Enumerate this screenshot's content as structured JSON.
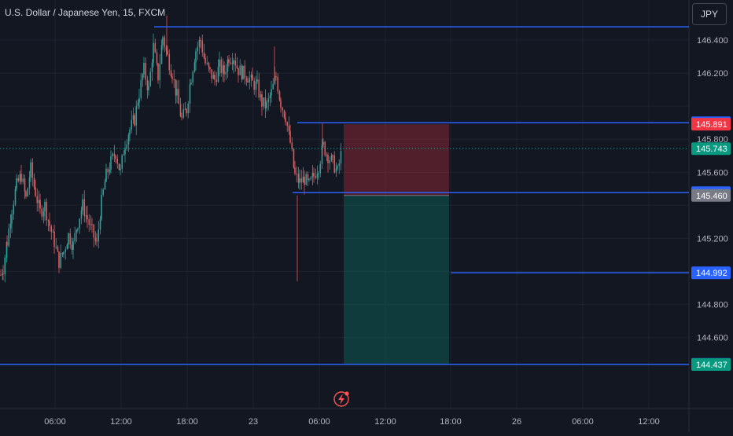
{
  "header": {
    "symbol_title": "U.S. Dollar / Japanese Yen, 15, FXCM",
    "currency_button": "JPY"
  },
  "colors": {
    "background": "#131722",
    "grid": "#1e222d",
    "up_candle": "#26a69a",
    "down_candle": "#ef5350",
    "horizontal_line": "#2962ff",
    "stop_zone": "rgba(242,54,69,0.28)",
    "target_zone": "rgba(8,153,129,0.28)",
    "axis_text": "#b2b5be",
    "current_price_line": "#26a69a"
  },
  "icons": {
    "alert": "lightning-bolt-icon"
  },
  "chart_data": {
    "type": "candlestick",
    "symbol": "USDJPY",
    "timeframe": "15",
    "ylim": [
      144.33,
      146.58
    ],
    "x_tick_labels": [
      "06:00",
      "12:00",
      "18:00",
      "23",
      "06:00",
      "12:00",
      "18:00",
      "26",
      "06:00",
      "12:00"
    ],
    "y_tick_labels": [
      "146.400",
      "146.200",
      "145.800",
      "145.600",
      "145.200",
      "144.800",
      "144.600"
    ],
    "price_scale_labels": [
      {
        "text": "145.900",
        "value": 145.9,
        "kind": "line"
      },
      {
        "text": "145.891",
        "value": 145.891,
        "kind": "stop"
      },
      {
        "text": "145.743",
        "value": 145.743,
        "kind": "last"
      },
      {
        "text": "145.477",
        "value": 145.477,
        "kind": "line"
      },
      {
        "text": "145.460",
        "value": 145.46,
        "kind": "entry"
      },
      {
        "text": "144.992",
        "value": 144.992,
        "kind": "line"
      },
      {
        "text": "144.438",
        "value": 144.438,
        "kind": "line"
      },
      {
        "text": "144.437",
        "value": 144.437,
        "kind": "target"
      }
    ],
    "horizontal_lines": [
      146.48,
      145.9,
      145.477,
      144.992,
      144.438
    ],
    "current_price": 145.743,
    "position": {
      "side": "short",
      "entry": 145.46,
      "stop": 145.891,
      "target": 144.437
    },
    "candle_path": [
      [
        0,
        144.98
      ],
      [
        3,
        145.02
      ],
      [
        8,
        145.18
      ],
      [
        14,
        145.38
      ],
      [
        20,
        145.52
      ],
      [
        26,
        145.58
      ],
      [
        32,
        145.44
      ],
      [
        38,
        145.62
      ],
      [
        44,
        145.48
      ],
      [
        50,
        145.36
      ],
      [
        56,
        145.4
      ],
      [
        62,
        145.28
      ],
      [
        68,
        145.18
      ],
      [
        74,
        145.06
      ],
      [
        80,
        145.12
      ],
      [
        86,
        145.22
      ],
      [
        92,
        145.16
      ],
      [
        98,
        145.3
      ],
      [
        104,
        145.4
      ],
      [
        110,
        145.32
      ],
      [
        116,
        145.24
      ],
      [
        122,
        145.16
      ],
      [
        128,
        145.42
      ],
      [
        134,
        145.58
      ],
      [
        140,
        145.66
      ],
      [
        146,
        145.72
      ],
      [
        152,
        145.6
      ],
      [
        158,
        145.78
      ],
      [
        164,
        145.86
      ],
      [
        170,
        145.92
      ],
      [
        176,
        146.08
      ],
      [
        182,
        146.22
      ],
      [
        188,
        146.1
      ],
      [
        194,
        146.36
      ],
      [
        200,
        146.18
      ],
      [
        206,
        146.42
      ],
      [
        212,
        146.3
      ],
      [
        218,
        146.2
      ],
      [
        224,
        146.06
      ],
      [
        230,
        145.92
      ],
      [
        236,
        145.98
      ],
      [
        242,
        146.18
      ],
      [
        248,
        146.34
      ],
      [
        254,
        146.4
      ],
      [
        260,
        146.26
      ],
      [
        266,
        146.2
      ],
      [
        272,
        146.16
      ],
      [
        278,
        146.24
      ],
      [
        284,
        146.2
      ],
      [
        290,
        146.3
      ],
      [
        296,
        146.3
      ],
      [
        302,
        146.22
      ],
      [
        308,
        146.2
      ],
      [
        314,
        146.18
      ],
      [
        320,
        146.14
      ],
      [
        326,
        146.12
      ],
      [
        332,
        146.02
      ],
      [
        338,
        146.0
      ],
      [
        344,
        146.08
      ],
      [
        350,
        146.18
      ],
      [
        356,
        146.02
      ],
      [
        362,
        145.94
      ],
      [
        368,
        145.78
      ],
      [
        374,
        145.58
      ],
      [
        380,
        145.54
      ],
      [
        386,
        145.56
      ],
      [
        392,
        145.52
      ],
      [
        398,
        145.58
      ],
      [
        404,
        145.64
      ],
      [
        410,
        145.76
      ],
      [
        416,
        145.7
      ],
      [
        422,
        145.66
      ],
      [
        428,
        145.6
      ],
      [
        434,
        145.74
      ]
    ]
  }
}
